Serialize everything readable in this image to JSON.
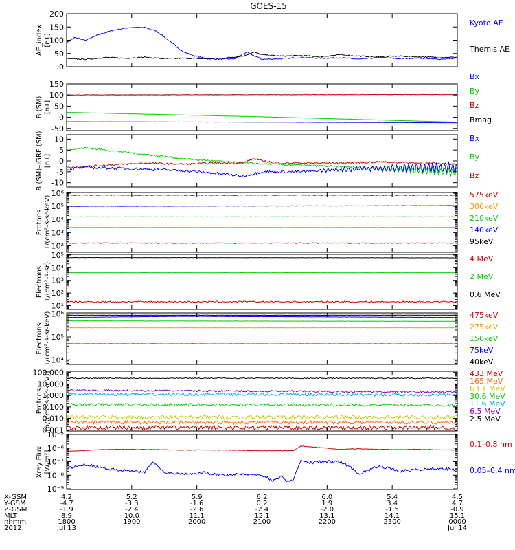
{
  "title": "GOES-15",
  "chart_data": [
    {
      "type": "line",
      "name": "ae-index",
      "ylabel": [
        "AE_index",
        "[nT]"
      ],
      "scale": "linear",
      "ylim": [
        0,
        200
      ],
      "ticks": [
        "0",
        "50",
        "100",
        "150",
        "200"
      ],
      "tick_values": [
        0,
        50,
        100,
        150,
        200
      ],
      "legend": [
        {
          "label": "Kyoto AE",
          "color": "#0000ff"
        },
        {
          "label": "Themis AE",
          "color": "#000000"
        }
      ],
      "series": [
        {
          "name": "Kyoto AE",
          "color": "#0000ff",
          "noise": 2,
          "x": [
            0,
            0.02,
            0.05,
            0.08,
            0.12,
            0.16,
            0.2,
            0.23,
            0.26,
            0.3,
            0.33,
            0.36,
            0.4,
            0.43,
            0.46,
            0.5,
            0.55,
            0.6,
            0.65,
            0.7,
            0.75,
            0.8,
            0.85,
            0.9,
            0.95,
            1.0
          ],
          "y": [
            90,
            110,
            100,
            120,
            138,
            148,
            148,
            135,
            100,
            55,
            40,
            30,
            28,
            30,
            55,
            28,
            30,
            35,
            32,
            34,
            28,
            35,
            30,
            33,
            28,
            32
          ]
        },
        {
          "name": "Themis AE",
          "color": "#000000",
          "noise": 2,
          "x": [
            0,
            0.05,
            0.1,
            0.15,
            0.2,
            0.25,
            0.3,
            0.35,
            0.4,
            0.45,
            0.48,
            0.5,
            0.55,
            0.6,
            0.65,
            0.7,
            0.75,
            0.8,
            0.85,
            0.9,
            0.95,
            1.0
          ],
          "y": [
            30,
            28,
            35,
            32,
            36,
            30,
            32,
            30,
            32,
            40,
            55,
            45,
            40,
            42,
            38,
            45,
            40,
            38,
            40,
            38,
            35,
            36
          ]
        }
      ]
    },
    {
      "type": "line",
      "name": "b-sm",
      "ylabel": [
        "B (SM)",
        "[nT]"
      ],
      "scale": "linear",
      "ylim": [
        -60,
        150
      ],
      "ticks": [
        "-50",
        "0",
        "50",
        "100",
        "150"
      ],
      "tick_values": [
        -50,
        0,
        50,
        100,
        150
      ],
      "legend": [
        {
          "label": "Bx",
          "color": "#0000ff"
        },
        {
          "label": "By",
          "color": "#00cc00"
        },
        {
          "label": "Bz",
          "color": "#cc0000"
        },
        {
          "label": "Bmag",
          "color": "#000000"
        }
      ],
      "series": [
        {
          "name": "Bmag",
          "color": "#000000",
          "noise": 0.5,
          "x": [
            0,
            1
          ],
          "y": [
            105,
            105
          ]
        },
        {
          "name": "Bz",
          "color": "#cc0000",
          "noise": 0.8,
          "x": [
            0,
            1
          ],
          "y": [
            100,
            102
          ]
        },
        {
          "name": "By",
          "color": "#00cc00",
          "noise": 0.3,
          "x": [
            0,
            0.5,
            1
          ],
          "y": [
            22,
            2,
            -22
          ]
        },
        {
          "name": "Bx",
          "color": "#0000ff",
          "noise": 0.3,
          "x": [
            0,
            0.5,
            1
          ],
          "y": [
            -20,
            -22,
            -25
          ]
        }
      ]
    },
    {
      "type": "line",
      "name": "b-minus-igrf",
      "ylabel": [
        "B (SM)–IGRF (SM)",
        "[nT]"
      ],
      "scale": "linear",
      "ylim": [
        -12,
        12
      ],
      "ticks": [
        "-10",
        "-5",
        "0",
        "5",
        "10"
      ],
      "tick_values": [
        -10,
        -5,
        0,
        5,
        10
      ],
      "legend": [
        {
          "label": "Bx",
          "color": "#0000ff"
        },
        {
          "label": "By",
          "color": "#00cc00"
        },
        {
          "label": "Bz",
          "color": "#cc0000"
        }
      ],
      "series": [
        {
          "name": "By",
          "color": "#00cc00",
          "noise": 0.4,
          "osc_start": 0.7,
          "osc_amp": 2,
          "x": [
            0,
            0.05,
            0.15,
            0.3,
            0.45,
            0.6,
            0.75,
            0.85,
            1.0
          ],
          "y": [
            5,
            6,
            4,
            1,
            -1,
            -2,
            -3,
            -4,
            -5
          ]
        },
        {
          "name": "Bz",
          "color": "#cc0000",
          "noise": 0.4,
          "x": [
            0,
            0.1,
            0.2,
            0.3,
            0.38,
            0.45,
            0.48,
            0.5,
            0.55,
            0.6,
            0.7,
            0.8,
            0.9,
            1.0
          ],
          "y": [
            -3,
            -2,
            -1,
            -1.5,
            -1,
            -1,
            1,
            0,
            -1,
            -1,
            -1,
            -0.5,
            -1,
            -1.5
          ]
        },
        {
          "name": "Bx",
          "color": "#0000ff",
          "noise": 0.6,
          "osc_start": 0.6,
          "osc_amp": 2.5,
          "x": [
            0,
            0.05,
            0.15,
            0.3,
            0.4,
            0.45,
            0.5,
            0.6,
            0.7,
            0.8,
            0.9,
            1.0
          ],
          "y": [
            -4,
            -3,
            -3.5,
            -4.5,
            -6,
            -7,
            -5,
            -5,
            -4,
            -3.5,
            -3,
            -3
          ]
        }
      ]
    },
    {
      "type": "line",
      "name": "protons-mev",
      "ylabel": [
        "Protons",
        "1/(cm²-s-sr-keV)"
      ],
      "scale": "log",
      "ylim": [
        1.5,
        6.05
      ],
      "ticks": [
        "10²",
        "10³",
        "10⁴",
        "10⁵",
        "10⁶"
      ],
      "tick_values": [
        2,
        3,
        4,
        5,
        6
      ],
      "legend": [
        {
          "label": "575keV",
          "color": "#cc0000"
        },
        {
          "label": "300keV",
          "color": "#ff9900"
        },
        {
          "label": "210keV",
          "color": "#00cc00"
        },
        {
          "label": "140keV",
          "color": "#0000ff"
        },
        {
          "label": "95keV",
          "color": "#000000"
        }
      ],
      "series": [
        {
          "name": "95keV",
          "color": "#000000",
          "noise": 0.02,
          "x": [
            0,
            1
          ],
          "y": [
            5.85,
            5.85
          ]
        },
        {
          "name": "140keV",
          "color": "#0000ff",
          "noise": 0.015,
          "x": [
            0,
            1
          ],
          "y": [
            5.0,
            5.05
          ]
        },
        {
          "name": "210keV",
          "color": "#00cc00",
          "noise": 0.015,
          "x": [
            0,
            1
          ],
          "y": [
            4.2,
            4.2
          ]
        },
        {
          "name": "300keV",
          "color": "#ff9900",
          "noise": 0.015,
          "x": [
            0,
            1
          ],
          "y": [
            3.4,
            3.4
          ]
        },
        {
          "name": "575keV",
          "color": "#cc0000",
          "noise": 0.03,
          "x": [
            0,
            1
          ],
          "y": [
            2.2,
            2.2
          ]
        }
      ]
    },
    {
      "type": "line",
      "name": "electrons-mev",
      "ylabel": [
        "Electrons",
        "1/(cm²-s-sr)"
      ],
      "scale": "log",
      "ylim": [
        0.7,
        5.05
      ],
      "ticks": [
        "10¹",
        "10²",
        "10³",
        "10⁴",
        "10⁵"
      ],
      "tick_values": [
        1,
        2,
        3,
        4,
        5
      ],
      "legend": [
        {
          "label": "4 MeV",
          "color": "#cc0000"
        },
        {
          "label": "2 MeV",
          "color": "#00cc00"
        },
        {
          "label": "0.6 MeV",
          "color": "#000000"
        }
      ],
      "series": [
        {
          "name": "0.6 MeV",
          "color": "#000000",
          "noise": 0.01,
          "x": [
            0,
            1
          ],
          "y": [
            4.8,
            4.78
          ]
        },
        {
          "name": "2 MeV",
          "color": "#00cc00",
          "noise": 0.01,
          "x": [
            0,
            1
          ],
          "y": [
            3.6,
            3.6
          ]
        },
        {
          "name": "4 MeV",
          "color": "#cc0000",
          "noise": 0.06,
          "x": [
            0,
            1
          ],
          "y": [
            1.3,
            1.3
          ]
        }
      ]
    },
    {
      "type": "line",
      "name": "electrons-kev",
      "ylabel": [
        "Electrons",
        "1/(cm²-s-sr-keV)"
      ],
      "scale": "log",
      "ylim": [
        3.8,
        6.05
      ],
      "ticks": [
        "10⁴",
        "10⁵",
        "10⁶"
      ],
      "tick_values": [
        4,
        5,
        6
      ],
      "legend": [
        {
          "label": "475keV",
          "color": "#cc0000"
        },
        {
          "label": "275keV",
          "color": "#ff9900"
        },
        {
          "label": "150keV",
          "color": "#00cc00"
        },
        {
          "label": "75keV",
          "color": "#0000ff"
        },
        {
          "label": "40keV",
          "color": "#000000"
        }
      ],
      "series": [
        {
          "name": "40keV",
          "color": "#000000",
          "noise": 0.005,
          "x": [
            0,
            1
          ],
          "y": [
            5.95,
            5.95
          ]
        },
        {
          "name": "75keV",
          "color": "#0000ff",
          "noise": 0.005,
          "x": [
            0,
            0.3,
            0.6,
            1
          ],
          "y": [
            5.85,
            5.9,
            5.88,
            5.85
          ]
        },
        {
          "name": "150keV",
          "color": "#00cc00",
          "noise": 0.005,
          "x": [
            0,
            1
          ],
          "y": [
            5.7,
            5.68
          ]
        },
        {
          "name": "275keV",
          "color": "#ff9900",
          "noise": 0.005,
          "x": [
            0,
            1
          ],
          "y": [
            5.4,
            5.4
          ]
        },
        {
          "name": "475keV",
          "color": "#cc0000",
          "noise": 0.005,
          "x": [
            0,
            1
          ],
          "y": [
            4.7,
            4.7
          ]
        }
      ]
    },
    {
      "type": "line",
      "name": "protons-high",
      "ylabel": [
        "Protons",
        "[p/(cm²-s-sr-keV)]"
      ],
      "scale": "log",
      "ylim": [
        -3.1,
        2.1
      ],
      "ticks": [
        "0.001",
        "0.010",
        "0.100",
        "1.000",
        "10.000",
        "100.000"
      ],
      "tick_values": [
        -3,
        -2,
        -1,
        0,
        1,
        2
      ],
      "legend": [
        {
          "label": "433 MeV",
          "color": "#cc0000"
        },
        {
          "label": "165 MeV",
          "color": "#ff6600"
        },
        {
          "label": "63.1 MeV",
          "color": "#cccc00"
        },
        {
          "label": "30.6 MeV",
          "color": "#00cc00"
        },
        {
          "label": "11.6 MeV",
          "color": "#00aaee"
        },
        {
          "label": "6.5 MeV",
          "color": "#8800cc"
        },
        {
          "label": "2.5 MeV",
          "color": "#000000"
        }
      ],
      "series": [
        {
          "name": "2.5 MeV",
          "color": "#000000",
          "noise": 0.04,
          "x": [
            0,
            1
          ],
          "y": [
            1.5,
            1.5
          ]
        },
        {
          "name": "6.5 MeV",
          "color": "#8800cc",
          "noise": 0.08,
          "x": [
            0,
            1
          ],
          "y": [
            0.45,
            0.3
          ]
        },
        {
          "name": "11.6 MeV",
          "color": "#00aaee",
          "noise": 0.12,
          "x": [
            0,
            1
          ],
          "y": [
            0.1,
            0.05
          ]
        },
        {
          "name": "30.6 MeV",
          "color": "#00cc00",
          "noise": 0.12,
          "x": [
            0,
            1
          ],
          "y": [
            -0.8,
            -0.85
          ]
        },
        {
          "name": "63.1 MeV",
          "color": "#cccc00",
          "noise": 0.18,
          "x": [
            0,
            1
          ],
          "y": [
            -1.9,
            -1.9
          ]
        },
        {
          "name": "165 MeV",
          "color": "#ff6600",
          "noise": 0.15,
          "x": [
            0,
            1
          ],
          "y": [
            -2.35,
            -2.35
          ]
        },
        {
          "name": "433 MeV",
          "color": "#cc0000",
          "noise": 0.2,
          "x": [
            0,
            1
          ],
          "y": [
            -2.8,
            -2.8
          ]
        }
      ]
    },
    {
      "type": "line",
      "name": "xray-flux",
      "ylabel": [
        "Xray Flux",
        "[W/m²]"
      ],
      "scale": "log",
      "ylim": [
        -9.05,
        -5
      ],
      "ticks": [
        "10⁻⁵",
        "10⁻⁶",
        "10⁻⁷",
        "10⁻⁸",
        "10⁻⁹"
      ],
      "tick_values": [
        -5,
        -6,
        -7,
        -8,
        -9
      ],
      "legend": [
        {
          "label": "0.1–0.8 nm",
          "color": "#cc0000"
        },
        {
          "label": "0.05–0.4 nm",
          "color": "#0000ff"
        }
      ],
      "series": [
        {
          "name": "0.1–0.8 nm",
          "color": "#cc0000",
          "noise": 0.02,
          "x": [
            0,
            0.1,
            0.2,
            0.3,
            0.4,
            0.5,
            0.58,
            0.6,
            0.62,
            0.7,
            0.75,
            0.8,
            0.9,
            1.0
          ],
          "y": [
            -6.25,
            -6.1,
            -6.1,
            -6.15,
            -6.15,
            -6.2,
            -6.2,
            -5.85,
            -5.9,
            -6.1,
            -6.05,
            -6.1,
            -6.1,
            -6.15
          ]
        },
        {
          "name": "0.05–0.4 nm",
          "color": "#0000ff",
          "noise": 0.1,
          "x": [
            0,
            0.05,
            0.1,
            0.2,
            0.22,
            0.25,
            0.3,
            0.35,
            0.4,
            0.45,
            0.5,
            0.53,
            0.55,
            0.57,
            0.58,
            0.6,
            0.62,
            0.65,
            0.7,
            0.72,
            0.75,
            0.8,
            0.85,
            0.9,
            0.95,
            1.0
          ],
          "y": [
            -7.5,
            -7.2,
            -7.5,
            -7.8,
            -7.0,
            -7.8,
            -7.9,
            -7.8,
            -8.0,
            -7.9,
            -8.0,
            -8.4,
            -8.1,
            -8.5,
            -8.3,
            -6.9,
            -7.1,
            -7.0,
            -7.0,
            -7.3,
            -7.9,
            -7.3,
            -7.7,
            -7.6,
            -7.5,
            -7.6
          ]
        }
      ]
    }
  ],
  "x_axis": {
    "tick_labels": [
      "1800",
      "1900",
      "2000",
      "2100",
      "2200",
      "2300",
      "0000"
    ],
    "row_labels": [
      "X-GSM",
      "Y-GSM",
      "Z-GSM",
      "MLT",
      "hhmm",
      "2012"
    ],
    "columns": [
      [
        "4.2",
        "-4.7",
        "-1.9",
        "8.9",
        "1800",
        "Jul 13"
      ],
      [
        "5.2",
        "-3.3",
        "-2.4",
        "10.0",
        "1900",
        ""
      ],
      [
        "5.9",
        "-1.6",
        "-2.6",
        "11.1",
        "2000",
        ""
      ],
      [
        "6.2",
        "0.2",
        "-2.4",
        "12.1",
        "2100",
        ""
      ],
      [
        "6.0",
        "1.9",
        "-2.0",
        "13.1",
        "2200",
        ""
      ],
      [
        "5.4",
        "3.4",
        "-1.5",
        "14.1",
        "2300",
        ""
      ],
      [
        "4.5",
        "4.7",
        "-0.9",
        "15.1",
        "0000",
        "Jul 14"
      ]
    ]
  }
}
